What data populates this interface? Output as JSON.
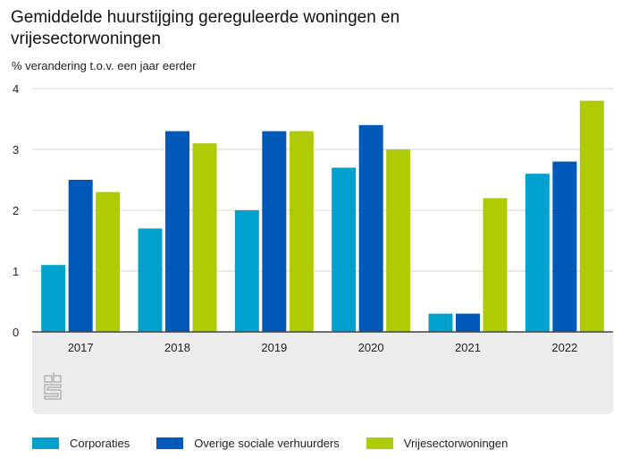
{
  "chart_data": {
    "type": "bar",
    "title": "Gemiddelde huurstijging gereguleerde woningen en vrijesectorwoningen",
    "ylabel": "% verandering t.o.v. een jaar eerder",
    "xlabel": "",
    "categories": [
      "2017",
      "2018",
      "2019",
      "2020",
      "2021",
      "2022"
    ],
    "ylim": [
      0,
      4
    ],
    "yticks": [
      "0",
      "1",
      "2",
      "3",
      "4"
    ],
    "grid": true,
    "legend_position": "bottom",
    "series": [
      {
        "name": "Corporaties",
        "color": "#00a1cd",
        "values": [
          1.1,
          1.7,
          2.0,
          2.7,
          0.3,
          2.6
        ]
      },
      {
        "name": "Overige sociale verhuurders",
        "color": "#0058b8",
        "values": [
          2.5,
          3.3,
          3.3,
          3.4,
          0.3,
          2.8
        ]
      },
      {
        "name": "Vrijesectorwoningen",
        "color": "#afcb05",
        "values": [
          2.3,
          3.1,
          3.3,
          3.0,
          2.2,
          3.8
        ]
      }
    ]
  },
  "logo": "cbs"
}
